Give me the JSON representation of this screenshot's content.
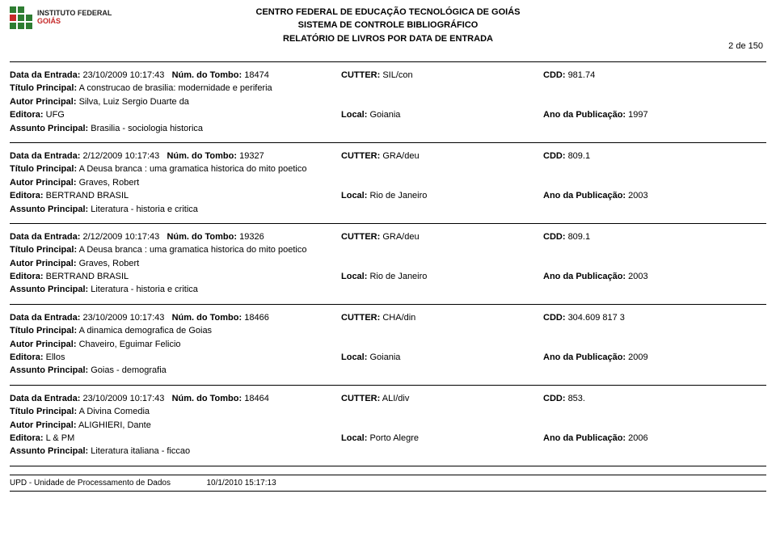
{
  "header": {
    "line1": "CENTRO FEDERAL DE EDUCAÇÃO TECNOLÓGICA DE GOIÁS",
    "line2": "SISTEMA DE CONTROLE BIBLIOGRÁFICO",
    "line3": "RELATÓRIO DE LIVROS POR DATA DE ENTRADA",
    "page_num": "2 de 150",
    "logo_text1": "INSTITUTO FEDERAL",
    "logo_text2": "GOIÁS",
    "logo_colors": {
      "green": "#2e7d32",
      "red": "#c62828"
    }
  },
  "labels": {
    "data_entrada": "Data da Entrada:",
    "num_tombo": "Núm. do Tombo:",
    "cutter": "CUTTER:",
    "cdd": "CDD:",
    "titulo": "Título Principal:",
    "autor": "Autor Principal:",
    "editora": "Editora:",
    "local": "Local:",
    "ano_pub": "Ano da Publicação:",
    "assunto": "Assunto Principal:"
  },
  "entries": [
    {
      "data_entrada": "23/10/2009 10:17:43",
      "num_tombo": "18474",
      "cutter": "SIL/con",
      "cdd": "981.74",
      "titulo": "A construcao de brasilia: modernidade e periferia",
      "autor": "Silva, Luiz Sergio Duarte da",
      "editora": "UFG",
      "local": "Goiania",
      "ano_pub": "1997",
      "assunto": "Brasilia - sociologia historica"
    },
    {
      "data_entrada": "2/12/2009 10:17:43",
      "num_tombo": "19327",
      "cutter": "GRA/deu",
      "cdd": "809.1",
      "titulo": "A Deusa branca : uma gramatica historica do mito poetico",
      "autor": "Graves, Robert",
      "editora": "BERTRAND BRASIL",
      "local": "Rio de Janeiro",
      "ano_pub": "2003",
      "assunto": "Literatura - historia e critica"
    },
    {
      "data_entrada": "2/12/2009 10:17:43",
      "num_tombo": "19326",
      "cutter": "GRA/deu",
      "cdd": "809.1",
      "titulo": "A Deusa branca : uma gramatica historica do mito poetico",
      "autor": "Graves, Robert",
      "editora": "BERTRAND BRASIL",
      "local": "Rio de Janeiro",
      "ano_pub": "2003",
      "assunto": "Literatura - historia e critica"
    },
    {
      "data_entrada": "23/10/2009 10:17:43",
      "num_tombo": "18466",
      "cutter": "CHA/din",
      "cdd": "304.609 817 3",
      "titulo": "A dinamica demografica de Goias",
      "autor": "Chaveiro, Eguimar Felicio",
      "editora": "Ellos",
      "local": "Goiania",
      "ano_pub": "2009",
      "assunto": "Goias - demografia"
    },
    {
      "data_entrada": "23/10/2009 10:17:43",
      "num_tombo": "18464",
      "cutter": "ALI/div",
      "cdd": "853.",
      "titulo": "A Divina Comedia",
      "autor": "ALIGHIERI, Dante",
      "editora": "L & PM",
      "local": "Porto Alegre",
      "ano_pub": "2006",
      "assunto": "Literatura italiana - ficcao"
    }
  ],
  "footer": {
    "left": "UPD - Unidade de Processamento de Dados",
    "timestamp": "10/1/2010 15:17:13"
  }
}
